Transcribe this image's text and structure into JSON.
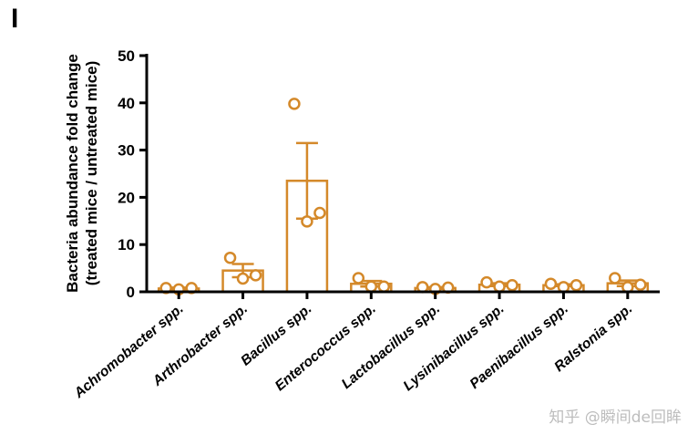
{
  "panel_letter": "I",
  "watermark": "知乎 @瞬间de回眸",
  "colors": {
    "series": "#d4892a",
    "axis": "#000000"
  },
  "chart_data": {
    "type": "bar",
    "title": "",
    "ylabel_line1": "Bacteria abundance fold change",
    "ylabel_line2": "(treated mice / untreated mice)",
    "xlabel": "",
    "ylim": [
      0,
      50
    ],
    "yticks": [
      0,
      10,
      20,
      30,
      40,
      50
    ],
    "grid": false,
    "legend": "none",
    "categories": [
      "Achromobacter spp.",
      "Arthrobacter spp.",
      "Bacillus spp.",
      "Enterococcus spp.",
      "Lactobacillus spp.",
      "Lysinibacillus spp.",
      "Paenibacillus spp.",
      "Ralstonia spp."
    ],
    "values": [
      0.7,
      4.5,
      23.5,
      1.7,
      0.8,
      1.5,
      1.4,
      1.8
    ],
    "errors": [
      0.2,
      1.4,
      8.0,
      0.6,
      0.2,
      0.3,
      0.2,
      0.6
    ],
    "points": [
      [
        0.8,
        0.5,
        0.8
      ],
      [
        7.2,
        2.8,
        3.5
      ],
      [
        39.8,
        14.9,
        16.7
      ],
      [
        2.9,
        1.1,
        1.1
      ],
      [
        1.0,
        0.6,
        0.9
      ],
      [
        2.0,
        1.1,
        1.4
      ],
      [
        1.7,
        1.0,
        1.4
      ],
      [
        2.9,
        1.0,
        1.5
      ]
    ]
  }
}
